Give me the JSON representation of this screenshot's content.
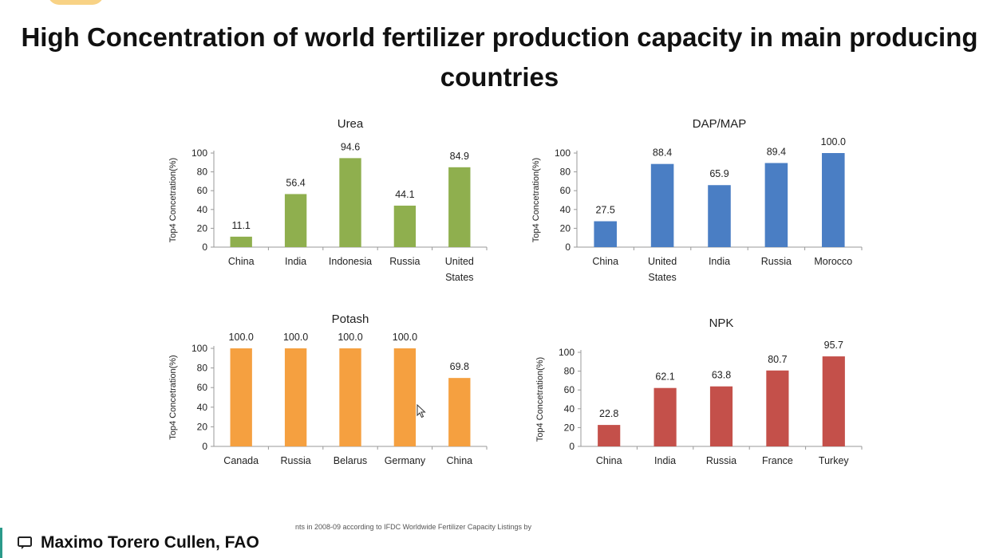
{
  "slide": {
    "title": "High Concentration of world fertilizer production capacity in main producing countries",
    "footnote": "nts in 2008-09 according to IFDC Worldwide Fertilizer Capacity Listings by",
    "presenter": "Maximo Torero Cullen, FAO",
    "presenter_icon": "screen-share-icon"
  },
  "chart_data": [
    {
      "type": "bar",
      "title": "Urea",
      "ylabel": "Top4 Concetration(%)",
      "categories": [
        "China",
        "India",
        "Indonesia",
        "Russia",
        "United States"
      ],
      "values": [
        11.1,
        56.4,
        94.6,
        44.1,
        84.9
      ],
      "value_labels": [
        "11.1",
        "56.4",
        "94.6",
        "44.1",
        "84.9"
      ],
      "ylim": [
        0,
        100
      ],
      "yticks": [
        0,
        20,
        40,
        60,
        80,
        100
      ],
      "color": "#8faf4e",
      "grid": false
    },
    {
      "type": "bar",
      "title": "DAP/MAP",
      "ylabel": "Top4 Concetration(%)",
      "categories": [
        "China",
        "United States",
        "India",
        "Russia",
        "Morocco"
      ],
      "values": [
        27.5,
        88.4,
        65.9,
        89.4,
        100.0
      ],
      "value_labels": [
        "27.5",
        "88.4",
        "65.9",
        "89.4",
        "100.0"
      ],
      "ylim": [
        0,
        100
      ],
      "yticks": [
        0,
        20,
        40,
        60,
        80,
        100
      ],
      "color": "#4a7ec4",
      "grid": false
    },
    {
      "type": "bar",
      "title": "Potash",
      "ylabel": "Top4 Concetration(%)",
      "categories": [
        "Canada",
        "Russia",
        "Belarus",
        "Germany",
        "China"
      ],
      "values": [
        100.0,
        100.0,
        100.0,
        100.0,
        69.8
      ],
      "value_labels": [
        "100.0",
        "100.0",
        "100.0",
        "100.0",
        "69.8"
      ],
      "ylim": [
        0,
        100
      ],
      "yticks": [
        0,
        20,
        40,
        60,
        80,
        100
      ],
      "color": "#f5a040",
      "grid": false
    },
    {
      "type": "bar",
      "title": "NPK",
      "ylabel": "Top4 Concetration(%)",
      "categories": [
        "China",
        "India",
        "Russia",
        "France",
        "Turkey"
      ],
      "values": [
        22.8,
        62.1,
        63.8,
        80.7,
        95.7
      ],
      "value_labels": [
        "22.8",
        "62.1",
        "63.8",
        "80.7",
        "95.7"
      ],
      "ylim": [
        0,
        100
      ],
      "yticks": [
        0,
        20,
        40,
        60,
        80,
        100
      ],
      "color": "#c4504a",
      "grid": false
    }
  ]
}
